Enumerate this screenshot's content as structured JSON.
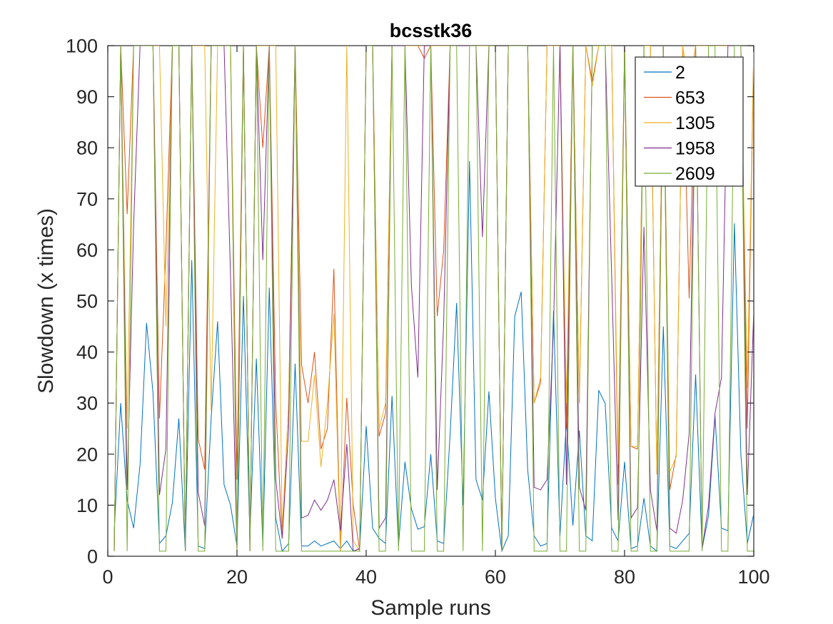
{
  "chart_data": {
    "type": "line",
    "title": "bcsstk36",
    "xlabel": "Sample runs",
    "ylabel": "Slowdown (x times)",
    "xlim": [
      0,
      100
    ],
    "ylim": [
      0,
      100
    ],
    "xticks": [
      0,
      20,
      40,
      60,
      80,
      100
    ],
    "yticks": [
      0,
      10,
      20,
      30,
      40,
      50,
      60,
      70,
      80,
      90,
      100
    ],
    "grid": false,
    "legend_position": "top-right",
    "x": [
      1,
      2,
      3,
      4,
      5,
      6,
      7,
      8,
      9,
      10,
      11,
      12,
      13,
      14,
      15,
      16,
      17,
      18,
      19,
      20,
      21,
      22,
      23,
      24,
      25,
      26,
      27,
      28,
      29,
      30,
      31,
      32,
      33,
      34,
      35,
      36,
      37,
      38,
      39,
      40,
      41,
      42,
      43,
      44,
      45,
      46,
      47,
      48,
      49,
      50,
      51,
      52,
      53,
      54,
      55,
      56,
      57,
      58,
      59,
      60,
      61,
      62,
      63,
      64,
      65,
      66,
      67,
      68,
      69,
      70,
      71,
      72,
      73,
      74,
      75,
      76,
      77,
      78,
      79,
      80,
      81,
      82,
      83,
      84,
      85,
      86,
      87,
      88,
      89,
      90,
      91,
      92,
      93,
      94,
      95,
      96,
      97,
      98,
      99,
      100
    ],
    "series": [
      {
        "name": "2",
        "color": "#0072BD",
        "values": [
          5,
          30,
          11,
          5.5,
          18,
          45.7,
          32,
          2.5,
          4,
          10.5,
          27,
          1,
          58,
          2,
          1.5,
          27,
          46,
          14,
          10,
          2,
          51,
          4,
          38.7,
          2,
          52.6,
          7.5,
          1,
          2.5,
          37.7,
          2,
          2,
          3,
          2,
          2.5,
          3,
          1.5,
          3,
          1,
          1.5,
          25.5,
          5.5,
          3.5,
          2.5,
          31.4,
          2,
          18.5,
          9.3,
          5.3,
          5.8,
          20,
          3,
          2.5,
          24,
          49.6,
          10,
          77.4,
          15,
          11,
          32.3,
          11.4,
          1,
          4,
          47,
          51.8,
          17,
          4,
          2,
          2.5,
          48,
          4,
          26.7,
          6,
          24.6,
          4,
          3,
          32.5,
          29.9,
          5.5,
          3,
          18.5,
          1.5,
          2,
          11.4,
          2,
          1,
          45,
          2,
          1.5,
          3,
          4.5,
          35.6,
          1.5,
          8,
          27.5,
          5.5,
          5,
          65.2,
          20,
          2.5,
          8.3
        ]
      },
      {
        "name": "653",
        "color": "#D95319",
        "values": [
          1,
          100,
          67,
          100,
          100,
          100,
          100,
          27,
          60,
          100,
          100,
          1,
          100,
          23,
          17,
          100,
          100,
          100,
          100,
          15,
          100,
          1,
          100,
          80,
          100,
          30,
          3.5,
          30,
          100,
          37.5,
          30,
          40,
          21,
          25,
          56.3,
          1,
          31,
          10,
          1,
          100,
          100,
          23.5,
          28,
          100,
          100,
          100,
          100,
          100,
          97.5,
          100,
          47,
          60,
          100,
          100,
          100,
          100,
          100,
          100,
          100,
          100,
          1,
          100,
          100,
          100,
          100,
          30,
          34,
          100,
          100,
          100,
          25,
          100,
          30,
          100,
          93,
          100,
          100,
          100,
          14,
          100,
          21.5,
          21,
          100,
          100,
          16,
          100,
          13,
          20,
          100,
          50.5,
          100,
          100,
          100,
          100,
          100,
          100,
          100,
          100,
          25,
          100
        ]
      },
      {
        "name": "1305",
        "color": "#EDB120",
        "values": [
          1,
          100,
          25,
          100,
          100,
          100,
          100,
          100,
          45,
          100,
          100,
          1,
          100,
          100,
          100,
          28.5,
          100,
          100,
          100,
          1,
          100,
          1,
          100,
          100,
          100,
          100,
          5,
          30,
          100,
          22.5,
          22.5,
          35.5,
          17.5,
          30,
          47.5,
          1,
          100,
          3,
          1,
          100,
          100,
          25,
          30,
          100,
          100,
          100,
          100,
          100,
          100,
          100,
          100,
          100,
          100,
          100,
          100,
          100,
          100,
          100,
          100,
          100,
          1,
          100,
          100,
          100,
          100,
          30,
          35,
          100,
          100,
          100,
          30,
          100,
          30,
          100,
          92,
          100,
          100,
          100,
          18,
          100,
          21.5,
          21.5,
          100,
          100,
          16,
          100,
          16.5,
          19.5,
          100,
          92,
          100,
          100,
          100,
          100,
          100,
          100,
          100,
          100,
          33,
          100
        ]
      },
      {
        "name": "1958",
        "color": "#7E2F8E",
        "values": [
          1,
          100,
          13,
          65,
          100,
          100,
          100,
          12,
          21,
          100,
          100,
          1,
          100,
          12.5,
          6,
          100,
          100,
          100,
          55,
          1,
          100,
          1,
          100,
          58,
          100,
          15,
          3.5,
          25,
          100,
          7.5,
          8,
          11,
          9,
          11,
          15,
          5,
          22,
          1,
          1.5,
          100,
          100,
          5.5,
          7.5,
          100,
          100,
          100,
          53,
          35,
          100,
          100,
          13,
          46,
          100,
          100,
          100,
          100,
          100,
          62.5,
          100,
          100,
          1,
          100,
          100,
          100,
          100,
          13.5,
          13,
          15,
          45,
          100,
          14,
          100,
          13.5,
          9,
          100,
          100,
          100,
          55,
          7,
          100,
          7.5,
          9.5,
          64.5,
          13,
          5,
          100,
          5.5,
          4.5,
          11,
          24,
          100,
          1.5,
          10,
          28,
          35,
          100,
          100,
          100,
          12,
          48
        ]
      },
      {
        "name": "2609",
        "color": "#77AC30",
        "values": [
          1,
          100,
          1,
          100,
          100,
          100,
          100,
          1,
          1,
          100,
          100,
          1,
          100,
          1,
          1,
          100,
          100,
          100,
          100,
          1,
          100,
          1,
          100,
          1,
          100,
          1,
          1,
          1,
          100,
          1,
          1,
          1,
          1,
          1,
          1,
          1,
          1,
          1,
          1,
          100,
          100,
          1,
          1,
          100,
          1,
          100,
          1,
          1,
          1,
          100,
          1,
          1,
          100,
          100,
          1,
          100,
          100,
          1,
          100,
          100,
          1,
          100,
          100,
          100,
          100,
          1,
          1,
          1,
          100,
          1,
          1,
          100,
          1,
          1,
          100,
          100,
          100,
          1,
          1,
          100,
          1,
          1,
          100,
          1,
          1,
          100,
          1,
          1,
          1,
          1,
          100,
          1,
          100,
          100,
          1,
          1,
          100,
          100,
          1,
          1
        ]
      }
    ]
  }
}
